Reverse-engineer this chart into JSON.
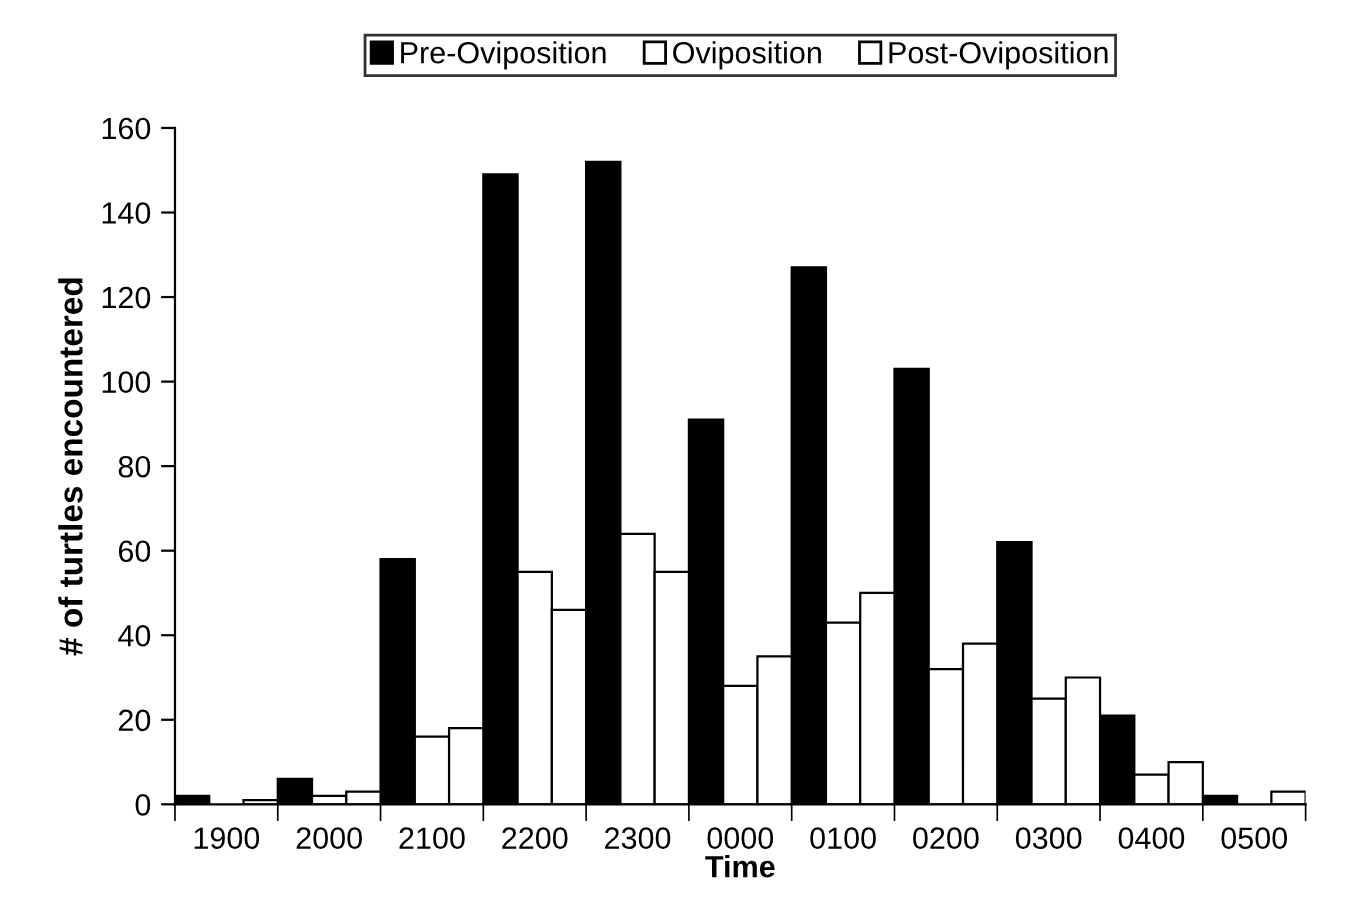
{
  "chart_data": {
    "type": "bar",
    "xlabel": "Time",
    "ylabel": "# of turtles encountered",
    "categories": [
      "1900",
      "2000",
      "2100",
      "2200",
      "2300",
      "0000",
      "0100",
      "0200",
      "0300",
      "0400",
      "0500"
    ],
    "series": [
      {
        "name": "Pre-Oviposition",
        "color": "#000000",
        "values": [
          2,
          6,
          58,
          149,
          152,
          91,
          127,
          103,
          62,
          21,
          2
        ]
      },
      {
        "name": "Oviposition",
        "color": "#ffffff",
        "values": [
          null,
          2,
          16,
          55,
          64,
          28,
          43,
          32,
          25,
          7,
          null
        ]
      },
      {
        "name": "Post-Oviposition",
        "color": "#ffffff",
        "values": [
          1,
          3,
          18,
          46,
          55,
          35,
          50,
          38,
          30,
          10,
          3
        ]
      }
    ],
    "ylim": [
      0,
      160
    ],
    "yticks": [
      0,
      20,
      40,
      60,
      80,
      100,
      120,
      140,
      160
    ],
    "grid": false,
    "legend": "top"
  }
}
